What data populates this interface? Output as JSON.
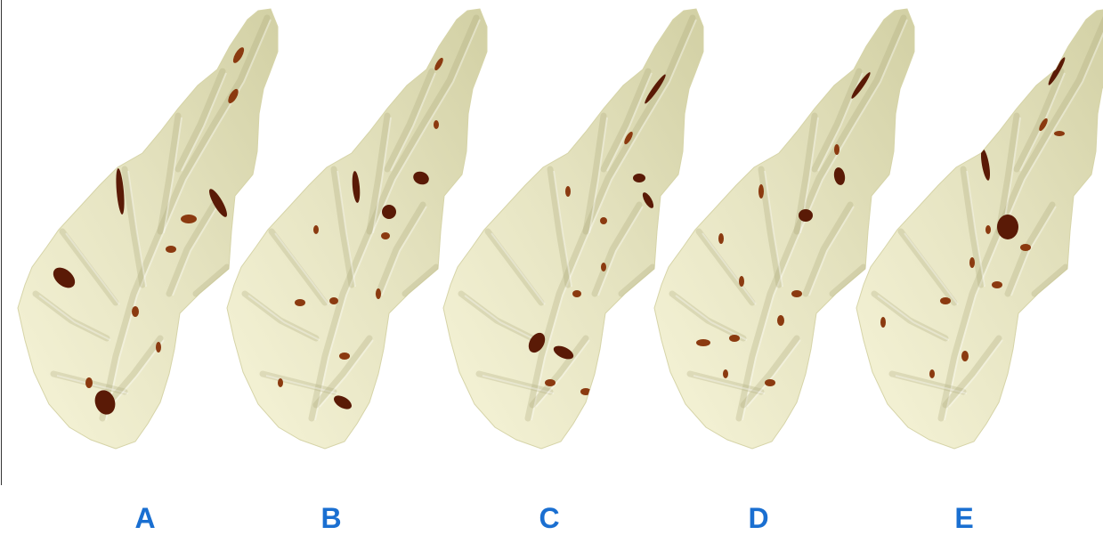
{
  "colors": {
    "terrain_light": "#f6f4d8",
    "terrain_mid": "#d6d4a8",
    "terrain_shadow": "#a8a578",
    "hazard_dark": "#5a1a06",
    "hazard_mid": "#8b3a10",
    "label_blue": "#1a6fd1"
  },
  "panels": [
    {
      "label": "A"
    },
    {
      "label": "B"
    },
    {
      "label": "C"
    },
    {
      "label": "D"
    },
    {
      "label": "E"
    }
  ]
}
